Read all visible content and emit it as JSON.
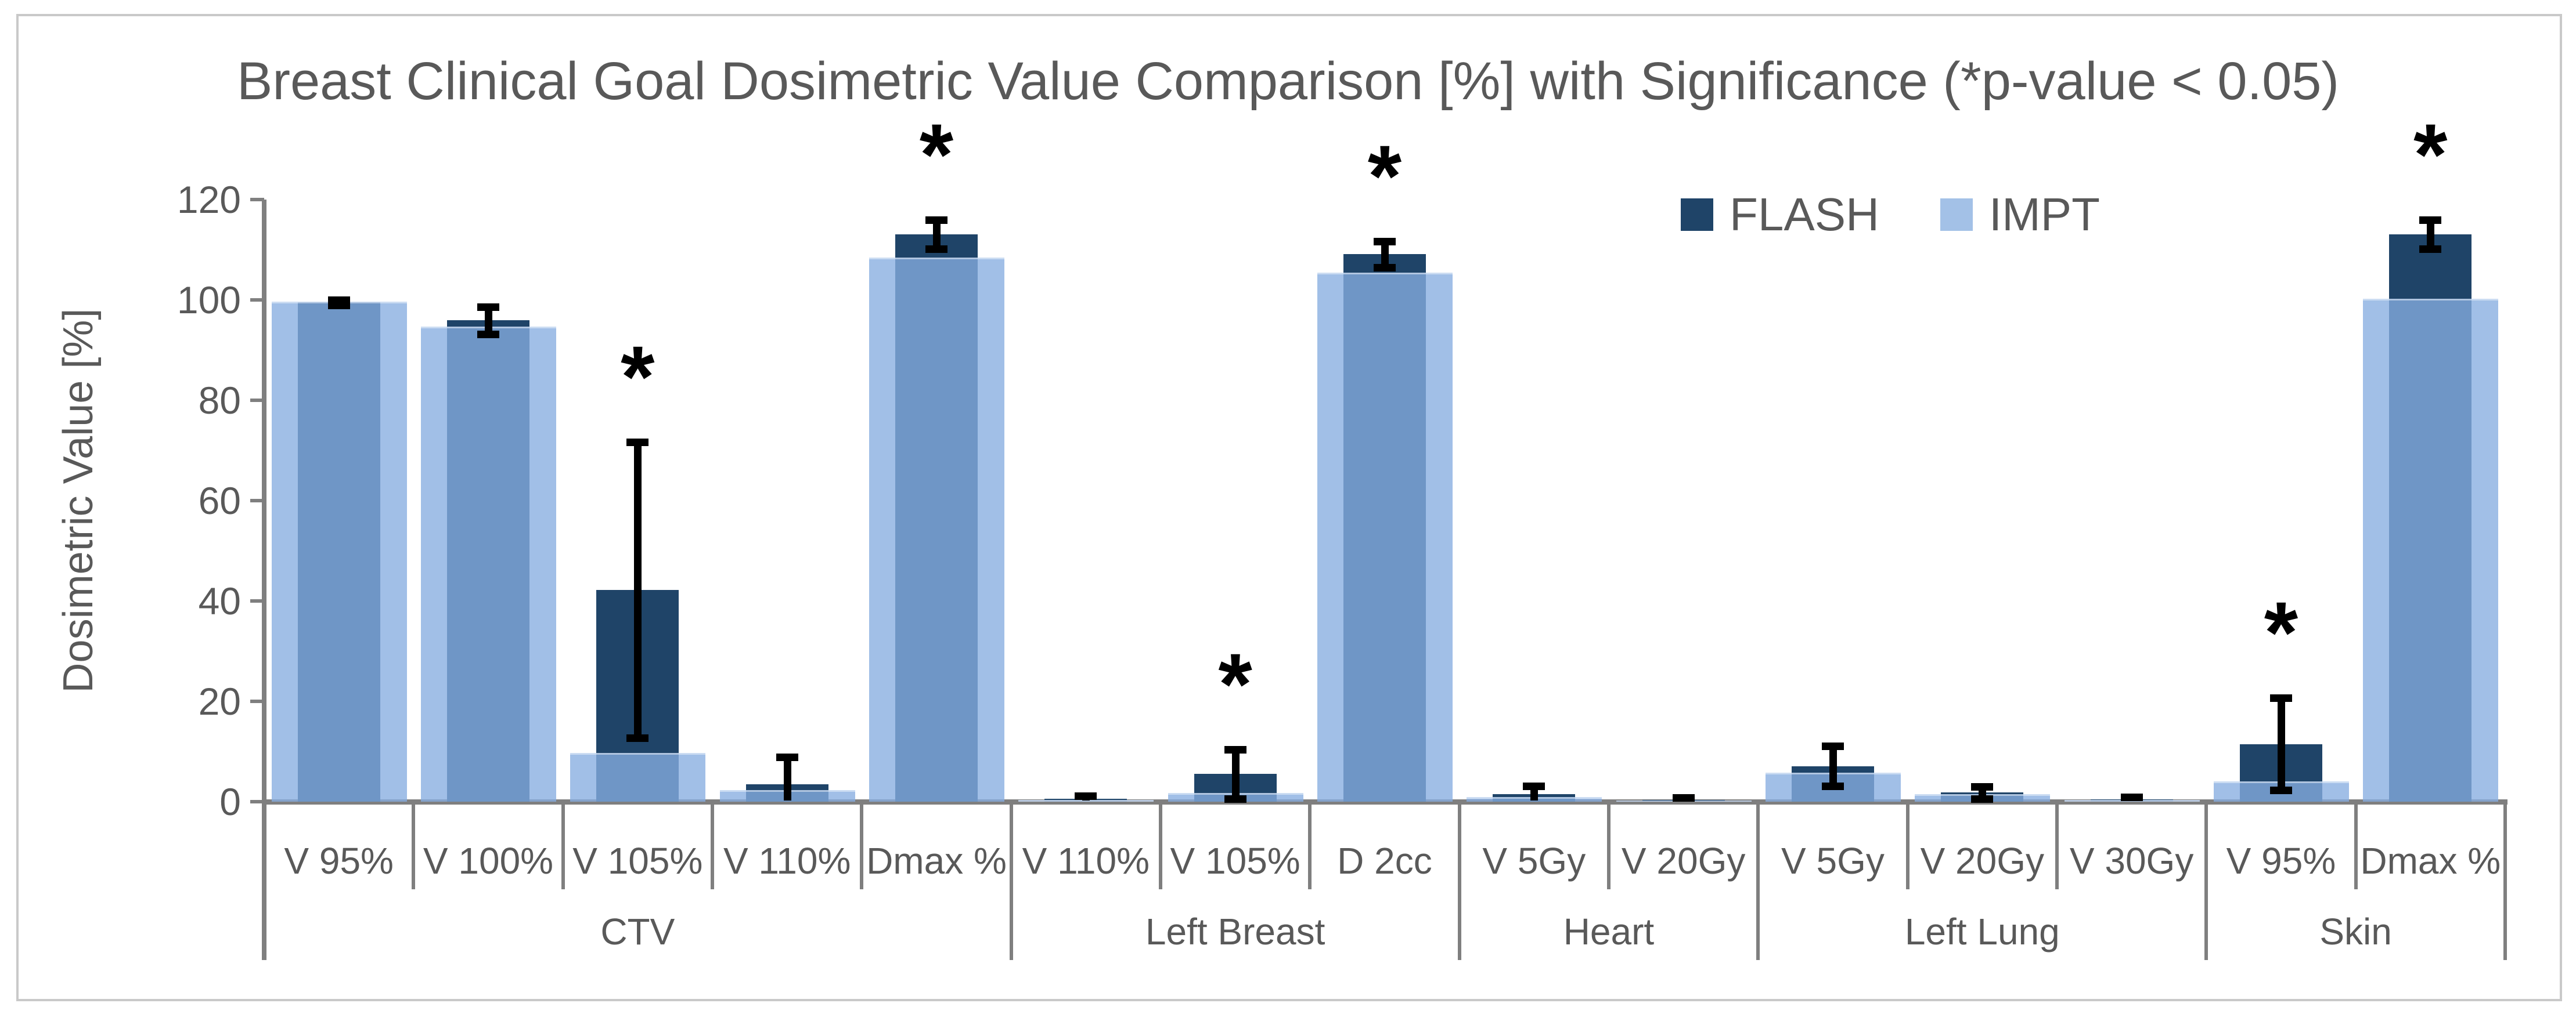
{
  "figure": {
    "background": "#FFFFFF",
    "border_color": "#C9C9C9",
    "text_color": "#595959",
    "axis_color": "#7F7F7F"
  },
  "legend": {
    "items": [
      {
        "label": "FLASH",
        "color": "#1F4468"
      },
      {
        "label": "IMPT",
        "color": "#A3C1E7"
      }
    ]
  },
  "chart_data": {
    "type": "bar",
    "title": "Breast Clinical Goal Dosimetric Value Comparison [%] with Significance (*p-value < 0.05)",
    "xlabel": "",
    "ylabel": "Dosimetric Value [%]",
    "ylim": [
      0,
      120
    ],
    "yticks": [
      0,
      20,
      40,
      60,
      80,
      100,
      120
    ],
    "grid": false,
    "legend_position": "top-right",
    "bar_style": "overlapped (FLASH opaque navy behind, IMPT translucent light blue in front, wider)",
    "significance_marker": "*",
    "series_names": [
      "FLASH",
      "IMPT"
    ],
    "colors": {
      "flash": "#1F4468",
      "impt_fill": "rgba(134,173,224,0.78)",
      "impt_legend": "#A3C1E7",
      "error_bar": "#000000"
    },
    "groups": [
      {
        "label": "CTV",
        "categories": [
          {
            "label": "V 95%",
            "flash": 99.5,
            "flash_err": 0.5,
            "impt": 99.6,
            "significant": false
          },
          {
            "label": "V 100%",
            "flash": 95.9,
            "flash_err": 2.7,
            "impt": 94.7,
            "significant": false
          },
          {
            "label": "V 105%",
            "flash": 42.2,
            "flash_err": 29.5,
            "impt": 9.7,
            "significant": true
          },
          {
            "label": "V 110%",
            "flash": 3.5,
            "flash_err": 5.4,
            "impt": 2.3,
            "significant": false
          },
          {
            "label": "Dmax %",
            "flash": 113.1,
            "flash_err": 2.9,
            "impt": 108.4,
            "significant": true
          }
        ]
      },
      {
        "label": "Left Breast",
        "categories": [
          {
            "label": "V 110%",
            "flash": 0.6,
            "flash_err": 0.5,
            "impt": 0.4,
            "significant": false
          },
          {
            "label": "V 105%",
            "flash": 5.5,
            "flash_err": 4.9,
            "impt": 1.7,
            "significant": true
          },
          {
            "label": "D 2cc",
            "flash": 109.1,
            "flash_err": 2.6,
            "impt": 105.4,
            "significant": true
          }
        ]
      },
      {
        "label": "Heart",
        "categories": [
          {
            "label": "V 5Gy",
            "flash": 1.5,
            "flash_err": 1.6,
            "impt": 0.9,
            "significant": false
          },
          {
            "label": "V 20Gy",
            "flash": 0.3,
            "flash_err": 0.5,
            "impt": 0.2,
            "significant": false
          }
        ]
      },
      {
        "label": "Left Lung",
        "categories": [
          {
            "label": "V 5Gy",
            "flash": 7.1,
            "flash_err": 4.0,
            "impt": 5.8,
            "significant": false
          },
          {
            "label": "V 20Gy",
            "flash": 1.8,
            "flash_err": 1.2,
            "impt": 1.5,
            "significant": false
          },
          {
            "label": "V 30Gy",
            "flash": 0.5,
            "flash_err": 0.4,
            "impt": 0.4,
            "significant": false
          }
        ]
      },
      {
        "label": "Skin",
        "categories": [
          {
            "label": "V 95%",
            "flash": 11.5,
            "flash_err": 9.2,
            "impt": 4.1,
            "significant": true
          },
          {
            "label": "Dmax %",
            "flash": 113.1,
            "flash_err": 2.9,
            "impt": 100.2,
            "significant": true
          }
        ]
      }
    ]
  }
}
